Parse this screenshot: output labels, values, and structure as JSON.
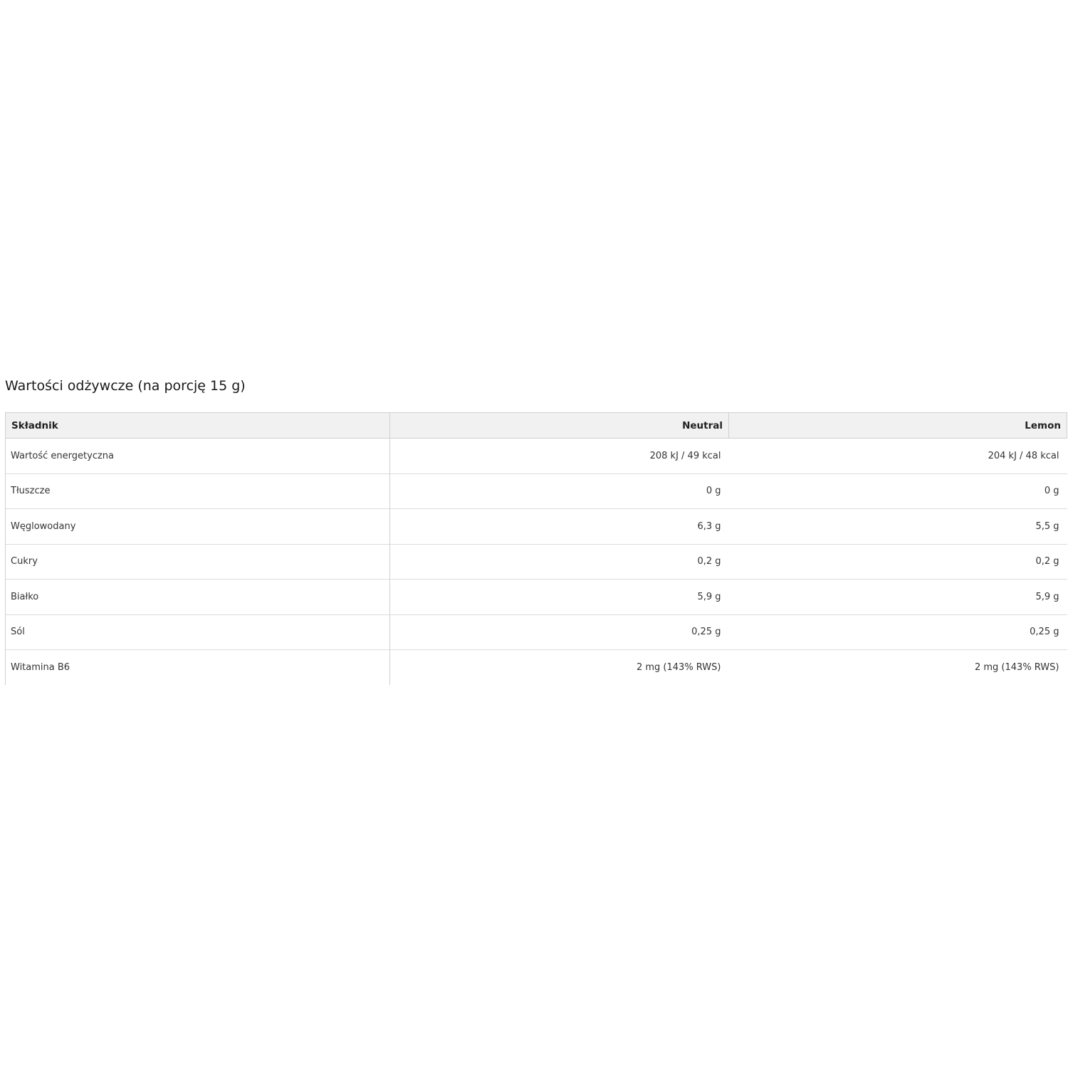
{
  "title": "Wartości odżywcze (na porcję 15 g)",
  "table": {
    "headers": [
      "Składnik",
      "Neutral",
      "Lemon"
    ],
    "rows": [
      {
        "name": "Wartość energetyczna",
        "neutral": "208 kJ / 49 kcal",
        "lemon": "204 kJ / 48 kcal"
      },
      {
        "name": "Tłuszcze",
        "neutral": "0 g",
        "lemon": "0 g"
      },
      {
        "name": "Węglowodany",
        "neutral": "6,3 g",
        "lemon": "5,5 g"
      },
      {
        "name": "Cukry",
        "neutral": "0,2 g",
        "lemon": "0,2 g"
      },
      {
        "name": "Białko",
        "neutral": "5,9 g",
        "lemon": "5,9 g"
      },
      {
        "name": "Sól",
        "neutral": "0,25 g",
        "lemon": "0,25 g"
      },
      {
        "name": "Witamina B6",
        "neutral": "2 mg (143% RWS)",
        "lemon": "2 mg (143% RWS)"
      }
    ]
  }
}
